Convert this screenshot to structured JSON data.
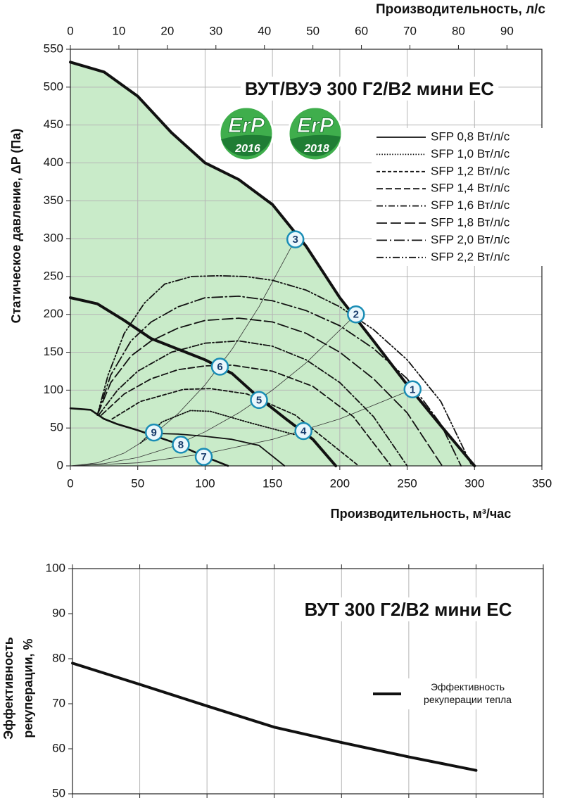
{
  "chart_data": [
    {
      "type": "line",
      "title": "ВУТ/ВУЭ 300 Г2/В2 мини ЕС",
      "xlabel": "Производительность, м³/час",
      "x2label": "Производительность, л/с",
      "ylabel": "Статическое давление, ΔP (Па)",
      "xlim": [
        0,
        350
      ],
      "xticks": [
        0,
        50,
        100,
        150,
        200,
        250,
        300,
        350
      ],
      "x2lim": [
        0,
        97.2
      ],
      "x2ticks": [
        0,
        10,
        20,
        30,
        40,
        50,
        60,
        70,
        80,
        90
      ],
      "ylim": [
        0,
        550
      ],
      "yticks": [
        0,
        50,
        100,
        150,
        200,
        250,
        300,
        350,
        400,
        450,
        500,
        550
      ],
      "grid": true,
      "legend": "upper right",
      "series": [
        {
          "color": "#111111",
          "width": "thick",
          "dash": "solid",
          "fill": "#c9ebc9",
          "x": [
            0,
            25,
            50,
            75,
            100,
            125,
            150,
            175,
            200,
            225,
            250,
            275,
            300
          ],
          "values": [
            533,
            520,
            488,
            440,
            400,
            378,
            345,
            290,
            222,
            165,
            107,
            53,
            0
          ]
        },
        {
          "color": "#111111",
          "width": "thick",
          "dash": "solid",
          "x": [
            0,
            20,
            40,
            60,
            80,
            100,
            120,
            140,
            160,
            180,
            197
          ],
          "values": [
            222,
            214,
            192,
            168,
            154,
            140,
            122,
            90,
            62,
            35,
            0
          ]
        },
        {
          "color": "#111111",
          "width": "medium",
          "dash": "solid",
          "x": [
            0,
            15,
            25,
            35,
            50,
            75,
            100,
            117
          ],
          "values": [
            76,
            74,
            62,
            55,
            47,
            32,
            12,
            0
          ]
        },
        {
          "color": "#333333",
          "width": "hair",
          "dash": "solid",
          "x": [
            0,
            20,
            40,
            60,
            80,
            100,
            120,
            140,
            167
          ],
          "values": [
            0,
            4,
            17,
            39,
            69,
            107,
            154,
            210,
            299
          ]
        },
        {
          "color": "#333333",
          "width": "hair",
          "dash": "solid",
          "x": [
            0,
            25,
            50,
            75,
            100,
            125,
            150,
            175,
            212
          ],
          "values": [
            0,
            3,
            11,
            25,
            45,
            70,
            100,
            136,
            200
          ]
        },
        {
          "color": "#333333",
          "width": "hair",
          "dash": "solid",
          "x": [
            0,
            50,
            100,
            150,
            200,
            254
          ],
          "values": [
            0,
            4,
            16,
            35,
            62,
            101
          ]
        },
        {
          "name": "SFP 0,8 Вт/л/с",
          "color": "#111111",
          "width": "thin",
          "dash": "solid",
          "x": [
            60,
            80,
            100,
            120,
            140,
            159
          ],
          "values": [
            43,
            42,
            39,
            35,
            27,
            0
          ]
        },
        {
          "name": "SFP 1,0 Вт/л/с",
          "color": "#111111",
          "width": "thin",
          "dash": "dotted",
          "x": [
            52,
            68,
            89,
            104,
            131,
            167
          ],
          "values": [
            30,
            58,
            73,
            72,
            58,
            41
          ]
        },
        {
          "name": "SFP 1,2 Вт/л/с",
          "color": "#111111",
          "width": "thin",
          "dash": "short-dash",
          "x": [
            31,
            52,
            84,
            104,
            131,
            167,
            214
          ],
          "values": [
            62,
            85,
            101,
            102,
            95,
            67,
            0
          ]
        },
        {
          "name": "SFP 1,4 Вт/л/с",
          "color": "#111111",
          "width": "thin",
          "dash": "dashed",
          "x": [
            23,
            40,
            60,
            80,
            100,
            120,
            150,
            180,
            210,
            238
          ],
          "values": [
            67,
            95,
            115,
            127,
            132,
            133,
            125,
            105,
            65,
            0
          ]
        },
        {
          "name": "SFP 1,6 Вт/л/с",
          "color": "#111111",
          "width": "thin",
          "dash": "dash-dot",
          "x": [
            21,
            35,
            50,
            75,
            100,
            125,
            150,
            175,
            200,
            225,
            250
          ],
          "values": [
            67,
            100,
            125,
            150,
            162,
            165,
            158,
            140,
            110,
            65,
            0
          ]
        },
        {
          "name": "SFP 1,8 Вт/л/с",
          "color": "#111111",
          "width": "thin",
          "dash": "long-dash",
          "x": [
            20,
            30,
            45,
            60,
            80,
            100,
            125,
            150,
            175,
            200,
            225,
            250,
            276
          ],
          "values": [
            67,
            110,
            145,
            165,
            182,
            192,
            195,
            190,
            175,
            150,
            115,
            70,
            0
          ]
        },
        {
          "name": "SFP 2,0 Вт/л/с",
          "color": "#111111",
          "width": "thin",
          "dash": "long-dash-dot",
          "x": [
            20,
            30,
            45,
            60,
            80,
            100,
            125,
            150,
            175,
            200,
            225,
            250,
            275,
            290
          ],
          "values": [
            67,
            120,
            165,
            190,
            210,
            222,
            224,
            218,
            205,
            185,
            155,
            115,
            55,
            0
          ]
        },
        {
          "name": "SFP 2,2 Вт/л/с",
          "color": "#111111",
          "width": "thin",
          "dash": "dash-dot-dot",
          "x": [
            20,
            28,
            40,
            55,
            70,
            90,
            110,
            130,
            150,
            175,
            200,
            225,
            250,
            275,
            298
          ],
          "values": [
            67,
            120,
            175,
            215,
            240,
            250,
            251,
            250,
            245,
            232,
            210,
            180,
            140,
            85,
            0
          ]
        }
      ],
      "points": [
        {
          "label": "1",
          "x": 254,
          "y": 101
        },
        {
          "label": "2",
          "x": 212,
          "y": 200
        },
        {
          "label": "3",
          "x": 167,
          "y": 299
        },
        {
          "label": "4",
          "x": 173,
          "y": 46
        },
        {
          "label": "5",
          "x": 140,
          "y": 87
        },
        {
          "label": "6",
          "x": 111,
          "y": 131
        },
        {
          "label": "7",
          "x": 99,
          "y": 12
        },
        {
          "label": "8",
          "x": 82,
          "y": 28
        },
        {
          "label": "9",
          "x": 62,
          "y": 44
        }
      ],
      "badges": [
        {
          "label": "ErP",
          "year": "2016"
        },
        {
          "label": "ErP",
          "year": "2018"
        }
      ]
    },
    {
      "type": "line",
      "title": "ВУТ 300 Г2/В2 мини ЕС",
      "ylabel": [
        "Эффективность",
        "рекуперации, %"
      ],
      "xlim": [
        0,
        350
      ],
      "xticks": [
        0,
        50,
        100,
        150,
        200,
        250,
        300,
        350
      ],
      "show_xtick_labels": false,
      "ylim": [
        50,
        100
      ],
      "yticks": [
        50,
        60,
        70,
        80,
        90,
        100
      ],
      "grid": "x",
      "legend": "right",
      "series": [
        {
          "name": "Эффективность рекуперации тепла",
          "color": "#111111",
          "width": "thick",
          "dash": "solid",
          "x": [
            0,
            50,
            100,
            150,
            200,
            250,
            300
          ],
          "values": [
            79,
            74.3,
            69.5,
            64.8,
            61.4,
            58.2,
            55.2
          ]
        }
      ]
    }
  ]
}
